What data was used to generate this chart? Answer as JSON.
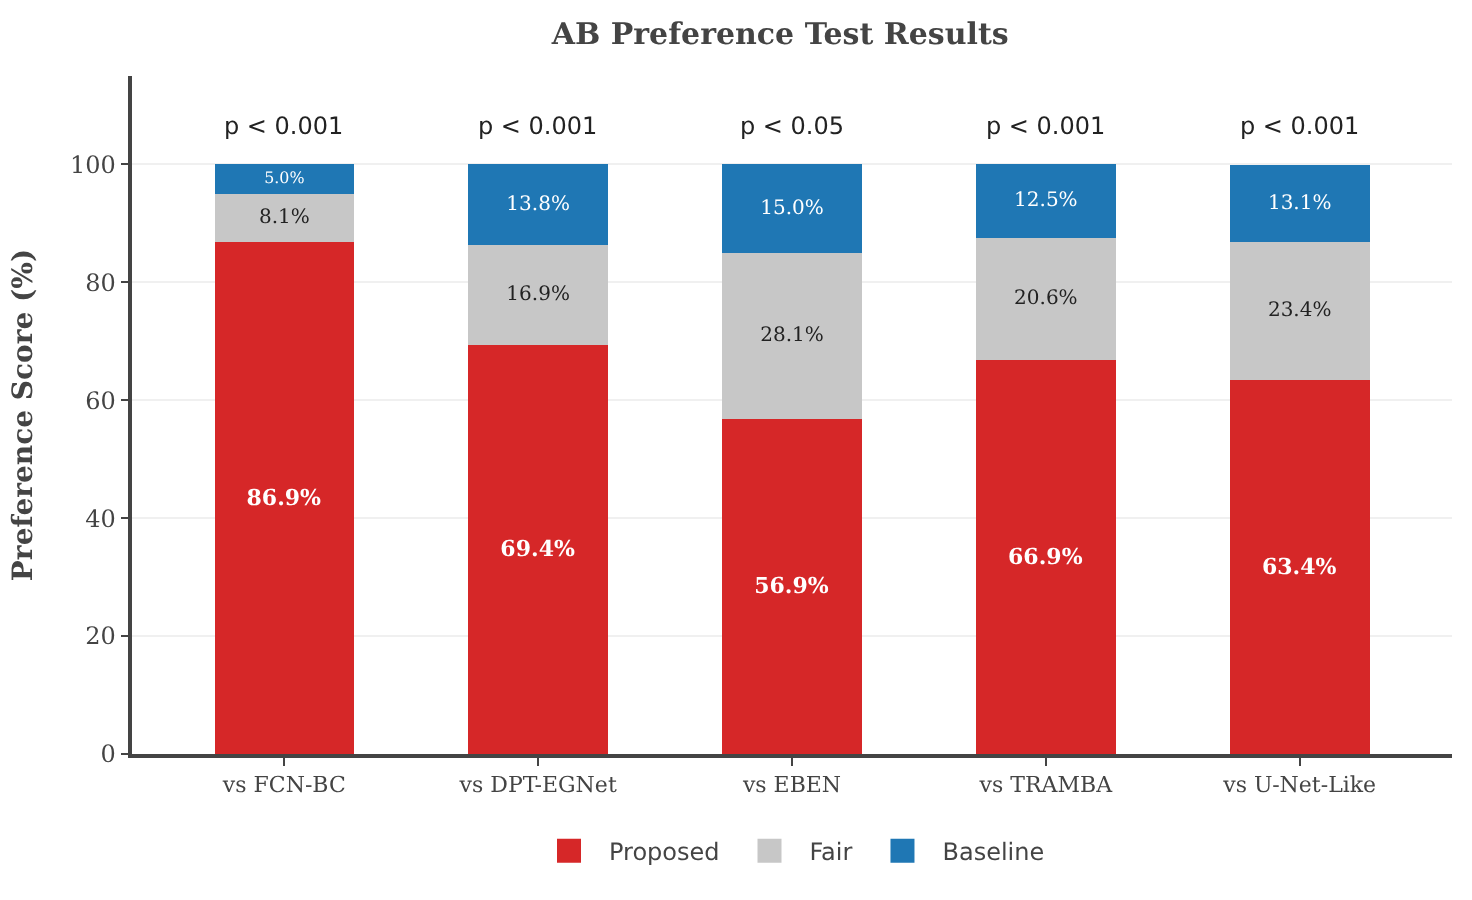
{
  "chart_data": {
    "type": "bar",
    "title": "AB Preference Test Results",
    "ylabel": "Preference Score (%)",
    "stacked": true,
    "categories": [
      "vs FCN-BC",
      "vs DPT-EGNet",
      "vs EBEN",
      "vs TRAMBA",
      "vs U-Net-Like"
    ],
    "series": [
      {
        "name": "Proposed",
        "color": "#d62728",
        "values": [
          86.9,
          69.4,
          56.9,
          66.9,
          63.4
        ],
        "value_labels": [
          "86.9%",
          "69.4%",
          "56.9%",
          "66.9%",
          "63.4%"
        ]
      },
      {
        "name": "Fair",
        "color": "#c7c7c7",
        "values": [
          8.1,
          16.9,
          28.1,
          20.6,
          23.4
        ],
        "value_labels": [
          "8.1%",
          "16.9%",
          "28.1%",
          "20.6%",
          "23.4%"
        ]
      },
      {
        "name": "Baseline",
        "color": "#1f77b4",
        "values": [
          5.0,
          13.8,
          15.0,
          12.5,
          13.1
        ],
        "value_labels": [
          "5.0%",
          "13.8%",
          "15.0%",
          "12.5%",
          "13.1%"
        ]
      }
    ],
    "ylim": [
      0,
      115
    ],
    "yticks": [
      0,
      20,
      40,
      60,
      80,
      100
    ],
    "grid": "y",
    "legend": "bottom",
    "annotations": [
      "p < 0.001",
      "p < 0.001",
      "p < 0.05",
      "p < 0.001",
      "p < 0.001"
    ]
  }
}
